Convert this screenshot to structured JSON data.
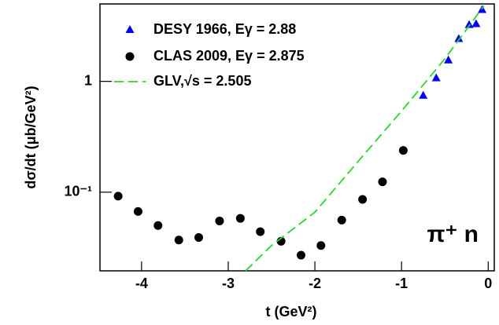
{
  "chart_data": {
    "type": "scatter",
    "x_label": "t (GeV²)",
    "y_label": "dσ/dt (μb/GeV²)",
    "annotation": "π⁺ n",
    "log_y": true,
    "xlim": [
      -4.48,
      0.07
    ],
    "ylim": [
      0.0195,
      5.0
    ],
    "xticks": [
      -4,
      -3,
      -2,
      -1,
      0
    ],
    "yticks": [
      {
        "value": 0.1,
        "label": "10⁻¹"
      },
      1
    ],
    "series": [
      {
        "name": "DESY 1966, Eγ = 2.88",
        "color": "#0000ff",
        "marker": "triangle",
        "x": [
          -0.75,
          -0.6,
          -0.46,
          -0.34,
          -0.22,
          -0.14,
          -0.07
        ],
        "values": [
          0.745,
          1.07,
          1.55,
          2.42,
          3.24,
          3.3,
          4.42
        ]
      },
      {
        "name": "CLAS 2009, Eγ = 2.875",
        "color": "#000000",
        "marker": "circle",
        "x": [
          -4.27,
          -4.04,
          -3.81,
          -3.57,
          -3.34,
          -3.1,
          -2.86,
          -2.63,
          -2.39,
          -2.16,
          -1.93,
          -1.69,
          -1.45,
          -1.22,
          -0.98
        ],
        "values": [
          0.092,
          0.067,
          0.05,
          0.037,
          0.039,
          0.055,
          0.058,
          0.044,
          0.036,
          0.027,
          0.033,
          0.056,
          0.086,
          0.124,
          0.238
        ]
      },
      {
        "name": "GLV,√s = 2.505",
        "color": "#22dd22",
        "marker": "dashed",
        "x": [
          -2.8,
          -2.5,
          -2.0,
          -1.5,
          -1.0,
          -0.5,
          -0.05
        ],
        "values": [
          0.0195,
          0.033,
          0.066,
          0.19,
          0.54,
          1.6,
          4.8
        ]
      }
    ]
  }
}
